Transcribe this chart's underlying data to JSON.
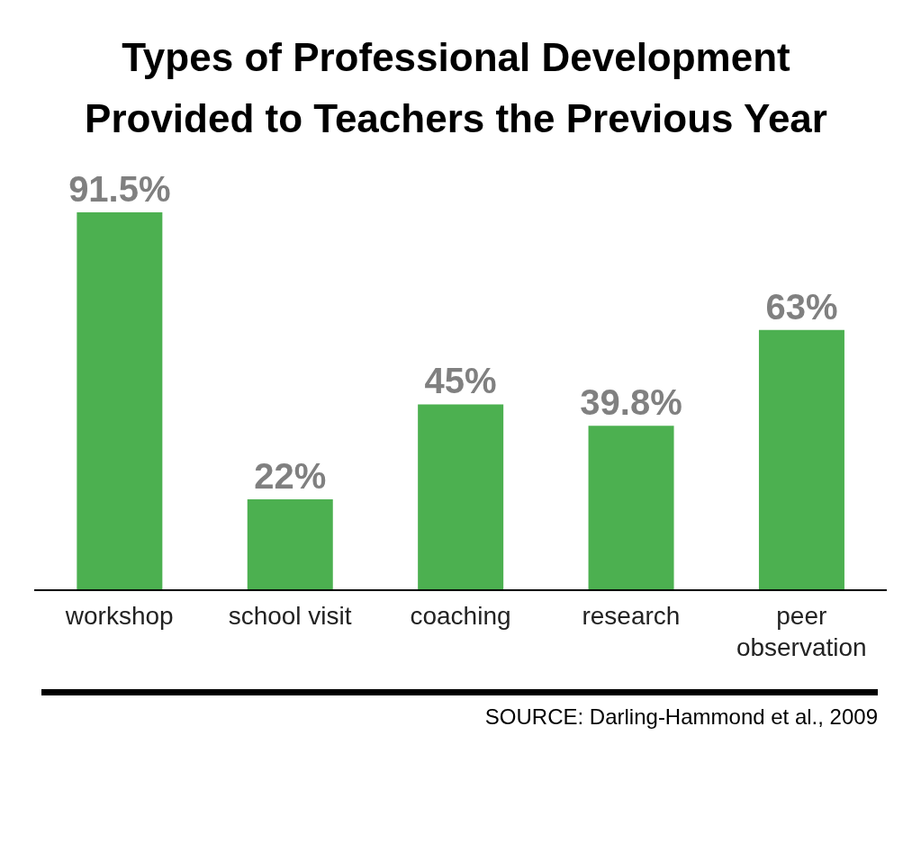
{
  "chart_data": {
    "type": "bar",
    "title": "Types of Professional Development Provided to Teachers the Previous Year",
    "categories": [
      "workshop",
      "school visit",
      "coaching",
      "research",
      "peer observation"
    ],
    "values": [
      91.5,
      22,
      45,
      39.8,
      63
    ],
    "value_labels": [
      "91.5%",
      "22%",
      "45%",
      "39.8%",
      "63%"
    ],
    "color": "#4cb050",
    "annotations": [
      "SOURCE: Darling-Hammond et al., 2009"
    ]
  }
}
